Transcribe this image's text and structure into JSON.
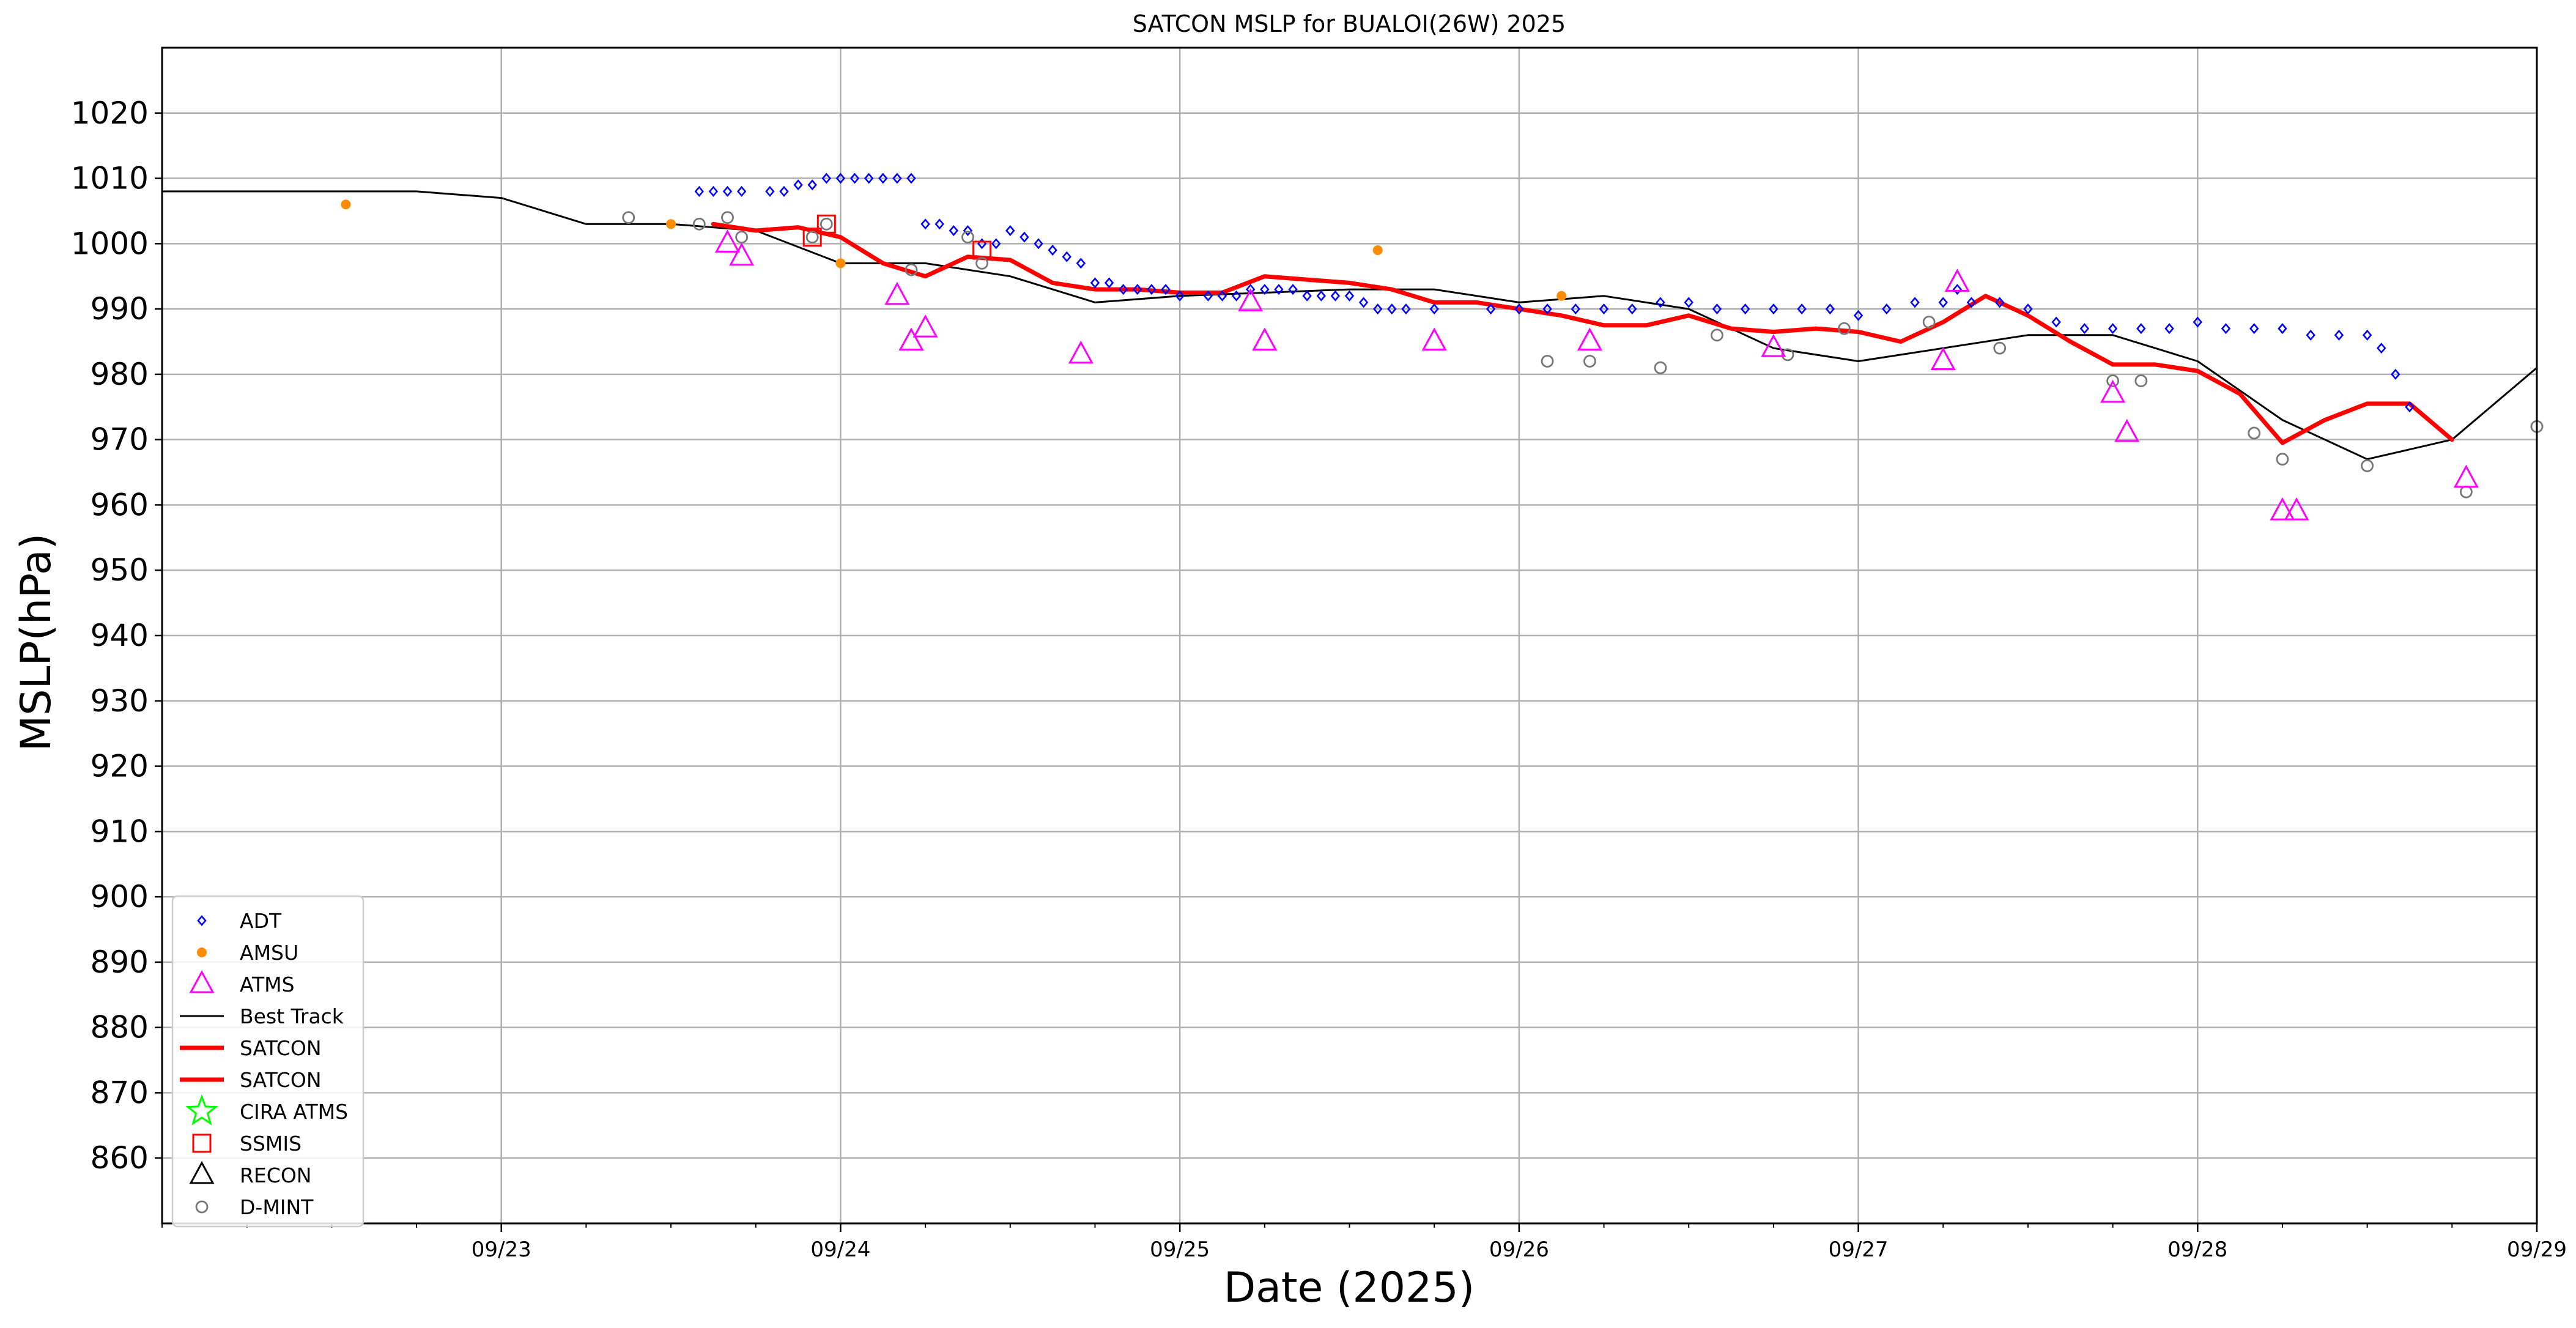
{
  "chart_data": {
    "type": "scatter",
    "title": "SATCON MSLP for BUALOI(26W) 2025",
    "xlabel": "Date (2025)",
    "ylabel": "MSLP(hPa)",
    "xlim": [
      "2025-09-22T00:00",
      "2025-09-29T00:00"
    ],
    "ylim": [
      850,
      1030
    ],
    "yticks": [
      860,
      870,
      880,
      890,
      900,
      910,
      920,
      930,
      940,
      950,
      960,
      970,
      980,
      990,
      1000,
      1010,
      1020
    ],
    "xticks": [
      {
        "date": "2025-09-23T00:00",
        "label": "09/23"
      },
      {
        "date": "2025-09-24T00:00",
        "label": "09/24"
      },
      {
        "date": "2025-09-25T00:00",
        "label": "09/25"
      },
      {
        "date": "2025-09-26T00:00",
        "label": "09/26"
      },
      {
        "date": "2025-09-27T00:00",
        "label": "09/27"
      },
      {
        "date": "2025-09-28T00:00",
        "label": "09/28"
      },
      {
        "date": "2025-09-29T00:00",
        "label": "09/29"
      }
    ],
    "grid": true,
    "legend_position": "bottom-left",
    "legend": [
      {
        "label": "ADT",
        "marker": "diamond",
        "color": "#0000ff"
      },
      {
        "label": "AMSU",
        "marker": "dot",
        "color": "#ff8c00"
      },
      {
        "label": "ATMS",
        "marker": "triangle",
        "color": "#ff00ff"
      },
      {
        "label": "Best Track",
        "marker": "line",
        "color": "#000000"
      },
      {
        "label": "SATCON",
        "marker": "thickline",
        "color": "#ff0000"
      },
      {
        "label": "SATCON",
        "marker": "thickline",
        "color": "#ff0000"
      },
      {
        "label": "CIRA ATMS",
        "marker": "star",
        "color": "#00ff00"
      },
      {
        "label": "SSMIS",
        "marker": "square",
        "color": "#ff0000"
      },
      {
        "label": "RECON",
        "marker": "triangle",
        "color": "#000000"
      },
      {
        "label": "D-MINT",
        "marker": "circle",
        "color": "#777777"
      }
    ],
    "series": [
      {
        "name": "Best Track",
        "kind": "line",
        "color": "#000000",
        "points": [
          [
            "2025-09-22T00:00",
            1008
          ],
          [
            "2025-09-22T18:00",
            1008
          ],
          [
            "2025-09-23T00:00",
            1007
          ],
          [
            "2025-09-23T06:00",
            1003
          ],
          [
            "2025-09-23T12:00",
            1003
          ],
          [
            "2025-09-23T18:00",
            1002
          ],
          [
            "2025-09-24T00:00",
            997
          ],
          [
            "2025-09-24T06:00",
            997
          ],
          [
            "2025-09-24T12:00",
            995
          ],
          [
            "2025-09-24T18:00",
            991
          ],
          [
            "2025-09-25T00:00",
            992
          ],
          [
            "2025-09-25T12:00",
            993
          ],
          [
            "2025-09-25T18:00",
            993
          ],
          [
            "2025-09-26T00:00",
            991
          ],
          [
            "2025-09-26T06:00",
            992
          ],
          [
            "2025-09-26T12:00",
            990
          ],
          [
            "2025-09-26T18:00",
            984
          ],
          [
            "2025-09-27T00:00",
            982
          ],
          [
            "2025-09-27T12:00",
            986
          ],
          [
            "2025-09-27T18:00",
            986
          ],
          [
            "2025-09-28T00:00",
            982
          ],
          [
            "2025-09-28T06:00",
            973
          ],
          [
            "2025-09-28T12:00",
            967
          ],
          [
            "2025-09-28T18:00",
            970
          ],
          [
            "2025-09-29T00:00",
            981
          ]
        ]
      },
      {
        "name": "SATCON",
        "kind": "thickline",
        "color": "#ff0000",
        "points": [
          [
            "2025-09-23T15:00",
            1003
          ],
          [
            "2025-09-23T18:00",
            1002
          ],
          [
            "2025-09-23T21:00",
            1002.5
          ],
          [
            "2025-09-24T00:00",
            1001
          ],
          [
            "2025-09-24T03:00",
            997
          ],
          [
            "2025-09-24T06:00",
            995
          ],
          [
            "2025-09-24T09:00",
            998
          ],
          [
            "2025-09-24T12:00",
            997.5
          ],
          [
            "2025-09-24T15:00",
            994
          ],
          [
            "2025-09-24T18:00",
            993
          ],
          [
            "2025-09-24T21:00",
            993
          ],
          [
            "2025-09-25T00:00",
            992.5
          ],
          [
            "2025-09-25T03:00",
            992.5
          ],
          [
            "2025-09-25T06:00",
            995
          ],
          [
            "2025-09-25T09:00",
            994.5
          ],
          [
            "2025-09-25T12:00",
            994
          ],
          [
            "2025-09-25T15:00",
            993
          ],
          [
            "2025-09-25T18:00",
            991
          ],
          [
            "2025-09-25T21:00",
            991
          ],
          [
            "2025-09-26T00:00",
            990
          ],
          [
            "2025-09-26T03:00",
            989
          ],
          [
            "2025-09-26T06:00",
            987.5
          ],
          [
            "2025-09-26T09:00",
            987.5
          ],
          [
            "2025-09-26T12:00",
            989
          ],
          [
            "2025-09-26T15:00",
            987
          ],
          [
            "2025-09-26T18:00",
            986.5
          ],
          [
            "2025-09-26T21:00",
            987
          ],
          [
            "2025-09-27T00:00",
            986.5
          ],
          [
            "2025-09-27T03:00",
            985
          ],
          [
            "2025-09-27T06:00",
            988
          ],
          [
            "2025-09-27T09:00",
            992
          ],
          [
            "2025-09-27T12:00",
            989
          ],
          [
            "2025-09-27T15:00",
            985
          ],
          [
            "2025-09-27T18:00",
            981.5
          ],
          [
            "2025-09-27T21:00",
            981.5
          ],
          [
            "2025-09-28T00:00",
            980.5
          ],
          [
            "2025-09-28T03:00",
            977
          ],
          [
            "2025-09-28T06:00",
            969.5
          ],
          [
            "2025-09-28T09:00",
            973
          ],
          [
            "2025-09-28T12:00",
            975.5
          ],
          [
            "2025-09-28T15:00",
            975.5
          ],
          [
            "2025-09-28T18:00",
            970
          ]
        ]
      },
      {
        "name": "ADT",
        "kind": "diamond",
        "color": "#0000ff",
        "points": [
          [
            "2025-09-23T14:00",
            1008
          ],
          [
            "2025-09-23T15:00",
            1008
          ],
          [
            "2025-09-23T16:00",
            1008
          ],
          [
            "2025-09-23T17:00",
            1008
          ],
          [
            "2025-09-23T19:00",
            1008
          ],
          [
            "2025-09-23T20:00",
            1008
          ],
          [
            "2025-09-23T21:00",
            1009
          ],
          [
            "2025-09-23T22:00",
            1009
          ],
          [
            "2025-09-23T23:00",
            1010
          ],
          [
            "2025-09-24T00:00",
            1010
          ],
          [
            "2025-09-24T01:00",
            1010
          ],
          [
            "2025-09-24T02:00",
            1010
          ],
          [
            "2025-09-24T03:00",
            1010
          ],
          [
            "2025-09-24T04:00",
            1010
          ],
          [
            "2025-09-24T05:00",
            1010
          ],
          [
            "2025-09-24T06:00",
            1003
          ],
          [
            "2025-09-24T07:00",
            1003
          ],
          [
            "2025-09-24T08:00",
            1002
          ],
          [
            "2025-09-24T09:00",
            1002
          ],
          [
            "2025-09-24T10:00",
            1000
          ],
          [
            "2025-09-24T11:00",
            1000
          ],
          [
            "2025-09-24T12:00",
            1002
          ],
          [
            "2025-09-24T13:00",
            1001
          ],
          [
            "2025-09-24T14:00",
            1000
          ],
          [
            "2025-09-24T15:00",
            999
          ],
          [
            "2025-09-24T16:00",
            998
          ],
          [
            "2025-09-24T17:00",
            997
          ],
          [
            "2025-09-24T18:00",
            994
          ],
          [
            "2025-09-24T19:00",
            994
          ],
          [
            "2025-09-24T20:00",
            993
          ],
          [
            "2025-09-24T21:00",
            993
          ],
          [
            "2025-09-24T22:00",
            993
          ],
          [
            "2025-09-24T23:00",
            993
          ],
          [
            "2025-09-25T00:00",
            992
          ],
          [
            "2025-09-25T02:00",
            992
          ],
          [
            "2025-09-25T03:00",
            992
          ],
          [
            "2025-09-25T04:00",
            992
          ],
          [
            "2025-09-25T05:00",
            993
          ],
          [
            "2025-09-25T06:00",
            993
          ],
          [
            "2025-09-25T07:00",
            993
          ],
          [
            "2025-09-25T08:00",
            993
          ],
          [
            "2025-09-25T09:00",
            992
          ],
          [
            "2025-09-25T10:00",
            992
          ],
          [
            "2025-09-25T11:00",
            992
          ],
          [
            "2025-09-25T12:00",
            992
          ],
          [
            "2025-09-25T13:00",
            991
          ],
          [
            "2025-09-25T14:00",
            990
          ],
          [
            "2025-09-25T15:00",
            990
          ],
          [
            "2025-09-25T16:00",
            990
          ],
          [
            "2025-09-25T18:00",
            990
          ],
          [
            "2025-09-25T22:00",
            990
          ],
          [
            "2025-09-26T00:00",
            990
          ],
          [
            "2025-09-26T02:00",
            990
          ],
          [
            "2025-09-26T04:00",
            990
          ],
          [
            "2025-09-26T06:00",
            990
          ],
          [
            "2025-09-26T08:00",
            990
          ],
          [
            "2025-09-26T10:00",
            991
          ],
          [
            "2025-09-26T12:00",
            991
          ],
          [
            "2025-09-26T14:00",
            990
          ],
          [
            "2025-09-26T16:00",
            990
          ],
          [
            "2025-09-26T18:00",
            990
          ],
          [
            "2025-09-26T20:00",
            990
          ],
          [
            "2025-09-26T22:00",
            990
          ],
          [
            "2025-09-27T00:00",
            989
          ],
          [
            "2025-09-27T02:00",
            990
          ],
          [
            "2025-09-27T04:00",
            991
          ],
          [
            "2025-09-27T06:00",
            991
          ],
          [
            "2025-09-27T07:00",
            993
          ],
          [
            "2025-09-27T08:00",
            991
          ],
          [
            "2025-09-27T10:00",
            991
          ],
          [
            "2025-09-27T12:00",
            990
          ],
          [
            "2025-09-27T14:00",
            988
          ],
          [
            "2025-09-27T16:00",
            987
          ],
          [
            "2025-09-27T18:00",
            987
          ],
          [
            "2025-09-27T20:00",
            987
          ],
          [
            "2025-09-27T22:00",
            987
          ],
          [
            "2025-09-28T00:00",
            988
          ],
          [
            "2025-09-28T02:00",
            987
          ],
          [
            "2025-09-28T04:00",
            987
          ],
          [
            "2025-09-28T06:00",
            987
          ],
          [
            "2025-09-28T08:00",
            986
          ],
          [
            "2025-09-28T10:00",
            986
          ],
          [
            "2025-09-28T12:00",
            986
          ],
          [
            "2025-09-28T13:00",
            984
          ],
          [
            "2025-09-28T14:00",
            980
          ],
          [
            "2025-09-28T15:00",
            975
          ]
        ]
      },
      {
        "name": "AMSU",
        "kind": "dot",
        "color": "#ff8c00",
        "points": [
          [
            "2025-09-22T13:00",
            1006
          ],
          [
            "2025-09-23T12:00",
            1003
          ],
          [
            "2025-09-24T00:00",
            997
          ],
          [
            "2025-09-25T14:00",
            999
          ],
          [
            "2025-09-26T03:00",
            992
          ]
        ]
      },
      {
        "name": "ATMS",
        "kind": "triangle",
        "color": "#ff00ff",
        "points": [
          [
            "2025-09-23T16:00",
            1000
          ],
          [
            "2025-09-23T17:00",
            998
          ],
          [
            "2025-09-24T04:00",
            992
          ],
          [
            "2025-09-24T05:00",
            985
          ],
          [
            "2025-09-24T06:00",
            987
          ],
          [
            "2025-09-24T17:00",
            983
          ],
          [
            "2025-09-25T05:00",
            991
          ],
          [
            "2025-09-25T06:00",
            985
          ],
          [
            "2025-09-25T18:00",
            985
          ],
          [
            "2025-09-26T05:00",
            985
          ],
          [
            "2025-09-26T18:00",
            984
          ],
          [
            "2025-09-27T06:00",
            982
          ],
          [
            "2025-09-27T07:00",
            994
          ],
          [
            "2025-09-27T18:00",
            977
          ],
          [
            "2025-09-27T19:00",
            971
          ],
          [
            "2025-09-28T06:00",
            959
          ],
          [
            "2025-09-28T07:00",
            959
          ],
          [
            "2025-09-28T19:00",
            964
          ]
        ]
      },
      {
        "name": "SSMIS",
        "kind": "square",
        "color": "#ff0000",
        "points": [
          [
            "2025-09-23T22:00",
            1001
          ],
          [
            "2025-09-23T23:00",
            1003
          ],
          [
            "2025-09-24T10:00",
            999
          ]
        ]
      },
      {
        "name": "D-MINT",
        "kind": "circle",
        "color": "#777777",
        "points": [
          [
            "2025-09-23T09:00",
            1004
          ],
          [
            "2025-09-23T14:00",
            1003
          ],
          [
            "2025-09-23T16:00",
            1004
          ],
          [
            "2025-09-23T17:00",
            1001
          ],
          [
            "2025-09-23T22:00",
            1001
          ],
          [
            "2025-09-23T23:00",
            1003
          ],
          [
            "2025-09-24T05:00",
            996
          ],
          [
            "2025-09-24T09:00",
            1001
          ],
          [
            "2025-09-24T10:00",
            997
          ],
          [
            "2025-09-26T02:00",
            982
          ],
          [
            "2025-09-26T05:00",
            982
          ],
          [
            "2025-09-26T10:00",
            981
          ],
          [
            "2025-09-26T14:00",
            986
          ],
          [
            "2025-09-26T19:00",
            983
          ],
          [
            "2025-09-26T23:00",
            987
          ],
          [
            "2025-09-27T05:00",
            988
          ],
          [
            "2025-09-27T10:00",
            984
          ],
          [
            "2025-09-27T18:00",
            979
          ],
          [
            "2025-09-27T20:00",
            979
          ],
          [
            "2025-09-28T04:00",
            971
          ],
          [
            "2025-09-28T06:00",
            967
          ],
          [
            "2025-09-28T12:00",
            966
          ],
          [
            "2025-09-28T19:00",
            962
          ],
          [
            "2025-09-29T00:00",
            972
          ]
        ]
      }
    ]
  }
}
